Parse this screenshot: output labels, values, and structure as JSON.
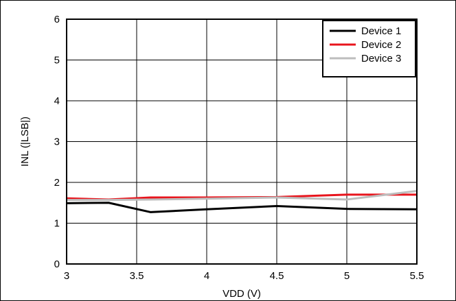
{
  "chart_data": {
    "type": "line",
    "title": "",
    "xlabel": "VDD (V)",
    "ylabel": "INL (|LSB|)",
    "xlim": [
      3,
      5.5
    ],
    "ylim": [
      0,
      6
    ],
    "x_ticks": [
      3,
      3.5,
      4,
      4.5,
      5,
      5.5
    ],
    "x_tick_labels": [
      "3",
      "3.5",
      "4",
      "4.5",
      "5",
      "5.5"
    ],
    "y_ticks": [
      0,
      1,
      2,
      3,
      4,
      5,
      6
    ],
    "y_tick_labels": [
      "0",
      "1",
      "2",
      "3",
      "4",
      "5",
      "6"
    ],
    "grid": true,
    "legend_position": "top-right",
    "series": [
      {
        "name": "Device 1",
        "color": "#000000",
        "x": [
          3.0,
          3.3,
          3.6,
          4.0,
          4.5,
          5.0,
          5.5
        ],
        "y": [
          1.49,
          1.5,
          1.27,
          1.34,
          1.42,
          1.35,
          1.34
        ]
      },
      {
        "name": "Device 2",
        "color": "#e8141c",
        "x": [
          3.0,
          3.3,
          3.6,
          4.0,
          4.5,
          5.0,
          5.5
        ],
        "y": [
          1.61,
          1.58,
          1.63,
          1.63,
          1.64,
          1.7,
          1.7
        ]
      },
      {
        "name": "Device 3",
        "color": "#bdbdbd",
        "x": [
          3.0,
          3.3,
          3.6,
          4.0,
          4.5,
          5.0,
          5.5
        ],
        "y": [
          1.57,
          1.57,
          1.58,
          1.6,
          1.63,
          1.58,
          1.79
        ]
      }
    ]
  }
}
